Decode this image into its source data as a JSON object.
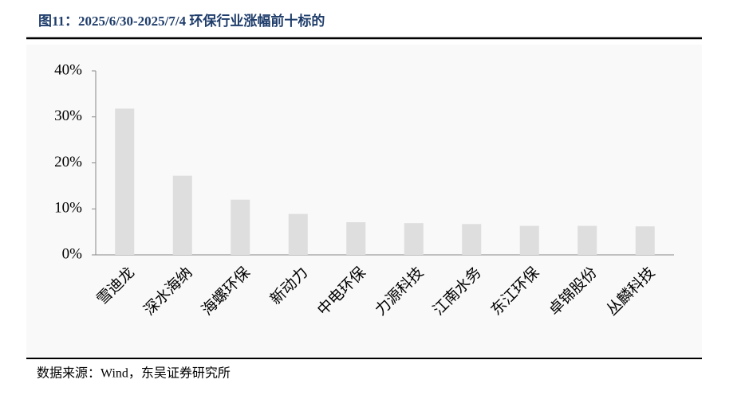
{
  "chart_data": {
    "type": "bar",
    "title": "图11：2025/6/30-2025/7/4 环保行业涨幅前十标的",
    "source": "数据来源：Wind，东吴证券研究所",
    "categories": [
      "雪迪龙",
      "深水海纳",
      "海螺环保",
      "新动力",
      "中电环保",
      "力源科技",
      "江南水务",
      "东江环保",
      "卓锦股份",
      "丛麟科技"
    ],
    "values": [
      31.8,
      17.2,
      12.0,
      8.9,
      7.1,
      6.9,
      6.7,
      6.3,
      6.3,
      6.2
    ],
    "color": "#dedede",
    "ylim": [
      0,
      40
    ],
    "yticks": [
      {
        "value": 0,
        "label": "0%"
      },
      {
        "value": 10,
        "label": "10%"
      },
      {
        "value": 20,
        "label": "20%"
      },
      {
        "value": 30,
        "label": "30%"
      },
      {
        "value": 40,
        "label": "40%"
      }
    ],
    "grid": false
  }
}
